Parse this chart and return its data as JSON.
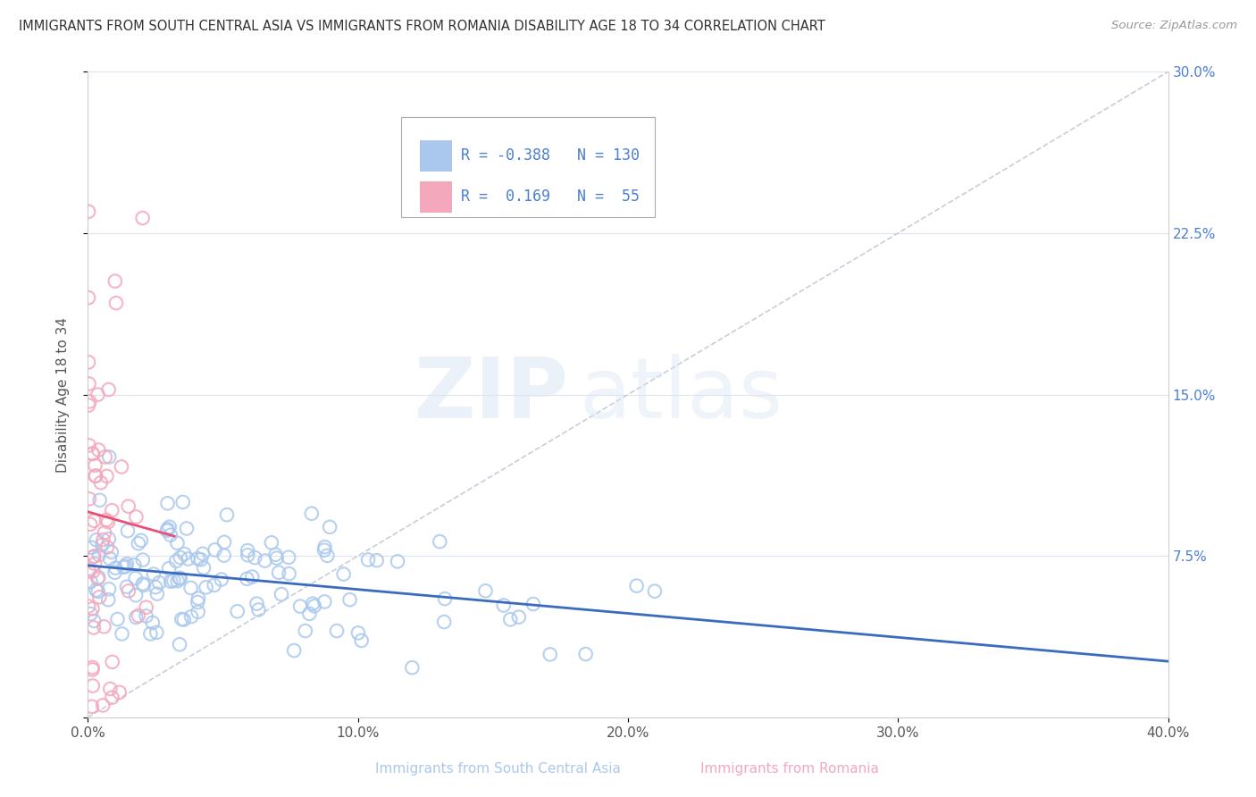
{
  "title": "IMMIGRANTS FROM SOUTH CENTRAL ASIA VS IMMIGRANTS FROM ROMANIA DISABILITY AGE 18 TO 34 CORRELATION CHART",
  "source": "Source: ZipAtlas.com",
  "xlabel_blue": "Immigrants from South Central Asia",
  "xlabel_pink": "Immigrants from Romania",
  "ylabel": "Disability Age 18 to 34",
  "watermark_zip": "ZIP",
  "watermark_atlas": "atlas",
  "xlim": [
    0.0,
    0.4
  ],
  "ylim": [
    0.0,
    0.3
  ],
  "xticks": [
    0.0,
    0.1,
    0.2,
    0.3,
    0.4
  ],
  "xtick_labels": [
    "0.0%",
    "10.0%",
    "20.0%",
    "30.0%",
    "40.0%"
  ],
  "yticks": [
    0.0,
    0.075,
    0.15,
    0.225,
    0.3
  ],
  "ytick_labels": [
    "",
    "7.5%",
    "15.0%",
    "22.5%",
    "30.0%"
  ],
  "blue_R": -0.388,
  "blue_N": 130,
  "pink_R": 0.169,
  "pink_N": 55,
  "blue_color": "#aac8ee",
  "pink_color": "#f4a8bc",
  "blue_line_color": "#3a6bbf",
  "pink_line_color": "#e8507a",
  "grid_color": "#dde4ef",
  "title_color": "#333333",
  "tick_color": "#4a7fd4",
  "source_color": "#999999"
}
